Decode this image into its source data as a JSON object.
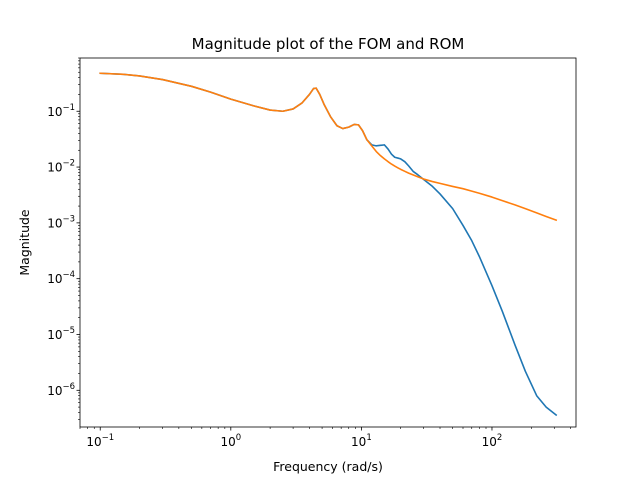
{
  "chart_data": {
    "type": "line",
    "title": "Magnitude plot of the FOM and ROM",
    "xlabel": "Frequency (rad/s)",
    "ylabel": "Magnitude",
    "xscale": "log",
    "yscale": "log",
    "xlim": [
      0.07,
      440
    ],
    "ylim": [
      2.2e-07,
      0.9
    ],
    "grid": false,
    "x_ticks": [
      {
        "base": "10",
        "exp": "−1",
        "value": 0.1
      },
      {
        "base": "10",
        "exp": "0",
        "value": 1
      },
      {
        "base": "10",
        "exp": "1",
        "value": 10
      },
      {
        "base": "10",
        "exp": "2",
        "value": 100
      }
    ],
    "y_ticks": [
      {
        "base": "10",
        "exp": "−1",
        "value": 0.1
      },
      {
        "base": "10",
        "exp": "−2",
        "value": 0.01
      },
      {
        "base": "10",
        "exp": "−3",
        "value": 0.001
      },
      {
        "base": "10",
        "exp": "−4",
        "value": 0.0001
      },
      {
        "base": "10",
        "exp": "−5",
        "value": 1e-05
      },
      {
        "base": "10",
        "exp": "−6",
        "value": 1e-06
      }
    ],
    "series": [
      {
        "color": "#1f77b4",
        "x": [
          0.1,
          0.15,
          0.2,
          0.3,
          0.5,
          0.7,
          1.0,
          1.5,
          2.0,
          2.5,
          3.0,
          3.5,
          4.0,
          4.3,
          4.5,
          4.8,
          5.2,
          5.8,
          6.5,
          7.2,
          8.0,
          8.8,
          9.5,
          10.2,
          11.0,
          12.0,
          13.0,
          14.0,
          15.0,
          16.0,
          17.0,
          18.0,
          19.0,
          20.0,
          21.5,
          23.0,
          25.0,
          27.0,
          30.0,
          35.0,
          40.0,
          50.0,
          60.0,
          70.0,
          80.0,
          100.0,
          120.0,
          150.0,
          180.0,
          220.0,
          260.0,
          310.0
        ],
        "y": [
          0.48,
          0.46,
          0.43,
          0.37,
          0.28,
          0.22,
          0.165,
          0.125,
          0.105,
          0.1,
          0.11,
          0.14,
          0.2,
          0.255,
          0.26,
          0.2,
          0.13,
          0.08,
          0.055,
          0.049,
          0.052,
          0.058,
          0.057,
          0.045,
          0.031,
          0.025,
          0.024,
          0.0245,
          0.025,
          0.021,
          0.017,
          0.015,
          0.0145,
          0.014,
          0.0125,
          0.0105,
          0.0083,
          0.0073,
          0.006,
          0.0045,
          0.0033,
          0.0018,
          0.0009,
          0.00048,
          0.00025,
          7.5e-05,
          2.6e-05,
          6.5e-06,
          2.2e-06,
          8e-07,
          5e-07,
          3.6e-07
        ]
      },
      {
        "color": "#ff7f0e",
        "x": [
          0.1,
          0.15,
          0.2,
          0.3,
          0.5,
          0.7,
          1.0,
          1.5,
          2.0,
          2.5,
          3.0,
          3.5,
          4.0,
          4.3,
          4.5,
          4.8,
          5.2,
          5.8,
          6.5,
          7.2,
          8.0,
          8.8,
          9.5,
          10.2,
          11.0,
          12.0,
          13.0,
          14.0,
          15.0,
          16.0,
          17.0,
          18.0,
          19.0,
          20.0,
          21.5,
          23.0,
          25.0,
          27.0,
          30.0,
          35.0,
          40.0,
          50.0,
          60.0,
          70.0,
          80.0,
          100.0,
          120.0,
          150.0,
          180.0,
          220.0,
          260.0,
          310.0
        ],
        "y": [
          0.48,
          0.46,
          0.43,
          0.37,
          0.28,
          0.22,
          0.165,
          0.125,
          0.105,
          0.1,
          0.11,
          0.14,
          0.2,
          0.255,
          0.26,
          0.2,
          0.13,
          0.08,
          0.055,
          0.049,
          0.052,
          0.058,
          0.057,
          0.045,
          0.031,
          0.024,
          0.019,
          0.016,
          0.014,
          0.0125,
          0.0113,
          0.0104,
          0.0097,
          0.0091,
          0.0084,
          0.0078,
          0.0072,
          0.0067,
          0.0061,
          0.0055,
          0.0051,
          0.0045,
          0.0041,
          0.0037,
          0.0034,
          0.0029,
          0.0025,
          0.0021,
          0.0018,
          0.00151,
          0.0013,
          0.00112
        ]
      }
    ]
  }
}
